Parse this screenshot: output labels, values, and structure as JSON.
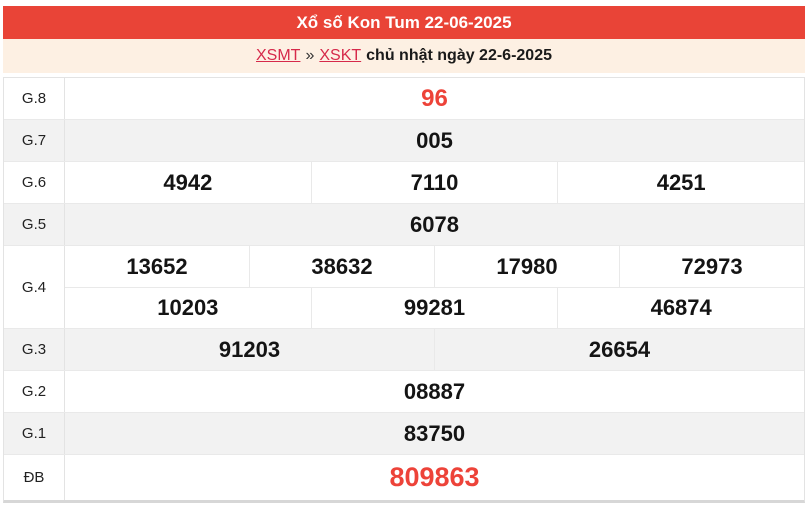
{
  "header": {
    "title": "Xổ số Kon Tum 22-06-2025"
  },
  "breadcrumb": {
    "link_xsmt": "XSMT",
    "separator": "»",
    "link_xskt": "XSKT",
    "suffix": "chủ nhật ngày 22-6-2025"
  },
  "colors": {
    "header_bg": "#e94437",
    "breadcrumb_bg": "#fdf0e3",
    "accent_red": "#ed4339",
    "link_red": "#d6294a",
    "row_shaded": "#f2f2f2"
  },
  "table": {
    "rows": [
      {
        "label": "G.8",
        "lines": [
          [
            "96"
          ]
        ],
        "highlight": true,
        "size": "lg",
        "shaded": false
      },
      {
        "label": "G.7",
        "lines": [
          [
            "005"
          ]
        ],
        "highlight": false,
        "shaded": true
      },
      {
        "label": "G.6",
        "lines": [
          [
            "4942",
            "7110",
            "4251"
          ]
        ],
        "highlight": false,
        "shaded": false
      },
      {
        "label": "G.5",
        "lines": [
          [
            "6078"
          ]
        ],
        "highlight": false,
        "shaded": true
      },
      {
        "label": "G.4",
        "lines": [
          [
            "13652",
            "38632",
            "17980",
            "72973"
          ],
          [
            "10203",
            "99281",
            "46874"
          ]
        ],
        "highlight": false,
        "shaded": false
      },
      {
        "label": "G.3",
        "lines": [
          [
            "91203",
            "26654"
          ]
        ],
        "highlight": false,
        "shaded": true
      },
      {
        "label": "G.2",
        "lines": [
          [
            "08887"
          ]
        ],
        "highlight": false,
        "shaded": false
      },
      {
        "label": "G.1",
        "lines": [
          [
            "83750"
          ]
        ],
        "highlight": false,
        "shaded": true
      },
      {
        "label": "ĐB",
        "lines": [
          [
            "809863"
          ]
        ],
        "highlight": true,
        "size": "xl",
        "shaded": false
      }
    ]
  }
}
